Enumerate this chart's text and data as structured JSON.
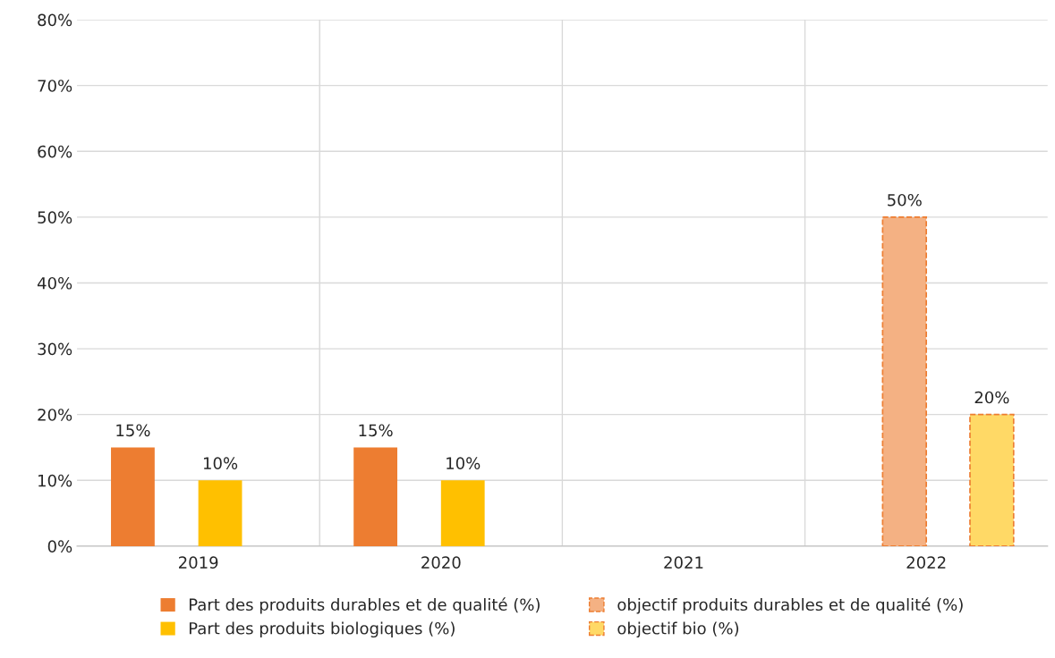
{
  "chart_data": {
    "type": "bar",
    "categories": [
      "2019",
      "2020",
      "2021",
      "2022"
    ],
    "series": [
      {
        "name": "Part des produits durables et de qualité (%)",
        "color": "#ed7d31",
        "values": [
          15,
          15,
          null,
          null
        ],
        "value_labels": [
          "15%",
          "15%",
          null,
          null
        ]
      },
      {
        "name": "objectif produits durables et de qualité (%)",
        "color": "#f4b183",
        "values": [
          null,
          null,
          null,
          50
        ],
        "value_labels": [
          null,
          null,
          null,
          "50%"
        ],
        "line_style": "dashed"
      },
      {
        "name": "Part des produits biologiques (%)",
        "color": "#ffc000",
        "values": [
          10,
          10,
          null,
          null
        ],
        "value_labels": [
          "10%",
          "10%",
          null,
          null
        ]
      },
      {
        "name": "objectif bio (%)",
        "color": "#ffd966",
        "values": [
          null,
          null,
          null,
          20
        ],
        "value_labels": [
          null,
          null,
          null,
          "20%"
        ],
        "line_style": "dashed"
      }
    ],
    "ylim": [
      0,
      80
    ],
    "yticks": [
      {
        "value": 0,
        "label": "0%"
      },
      {
        "value": 10,
        "label": "10%"
      },
      {
        "value": 20,
        "label": "20%"
      },
      {
        "value": 30,
        "label": "30%"
      },
      {
        "value": 40,
        "label": "40%"
      },
      {
        "value": 50,
        "label": "50%"
      },
      {
        "value": 60,
        "label": "60%"
      },
      {
        "value": 70,
        "label": "70%"
      },
      {
        "value": 80,
        "label": "80%"
      }
    ],
    "grid": true,
    "legend": "bottom"
  }
}
